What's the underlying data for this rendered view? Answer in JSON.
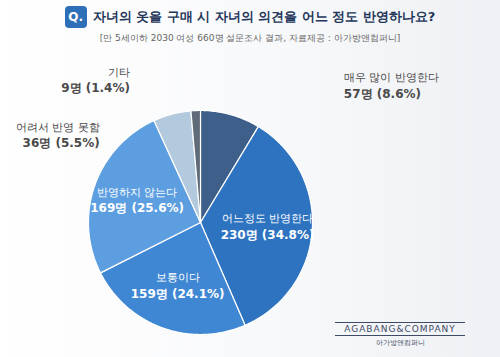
{
  "chart_data": {
    "type": "pie",
    "title_badge": "Q.",
    "title": "자녀의 옷을 구매 시 자녀의 의견을 어느 정도 반영하나요?",
    "subtitle": "[만 5세이하 2030 여성 660명 설문조사 결과, 자료제공 : 아가방앤컴퍼니]",
    "categories": [
      "매우 많이 반영한다",
      "어느정도 반영한다",
      "보통이다",
      "반영하지 않는다",
      "어려서 반영 못함",
      "기타"
    ],
    "values": [
      57,
      230,
      159,
      169,
      36,
      9
    ],
    "value_labels": [
      "57명 (8.6%)",
      "230명 (34.8%)",
      "159명 (24.1%)",
      "169명 (25.6%)",
      "36명 (5.5%)",
      "9명 (1.4%)"
    ],
    "colors": [
      "#3e5f8a",
      "#2e73bf",
      "#3f87d3",
      "#5c9ee0",
      "#b3c9de",
      "#5f6b78"
    ],
    "data_labels": true,
    "annotations": [
      "AGABANG&COMPANY",
      "아가방앤컴퍼니"
    ]
  }
}
